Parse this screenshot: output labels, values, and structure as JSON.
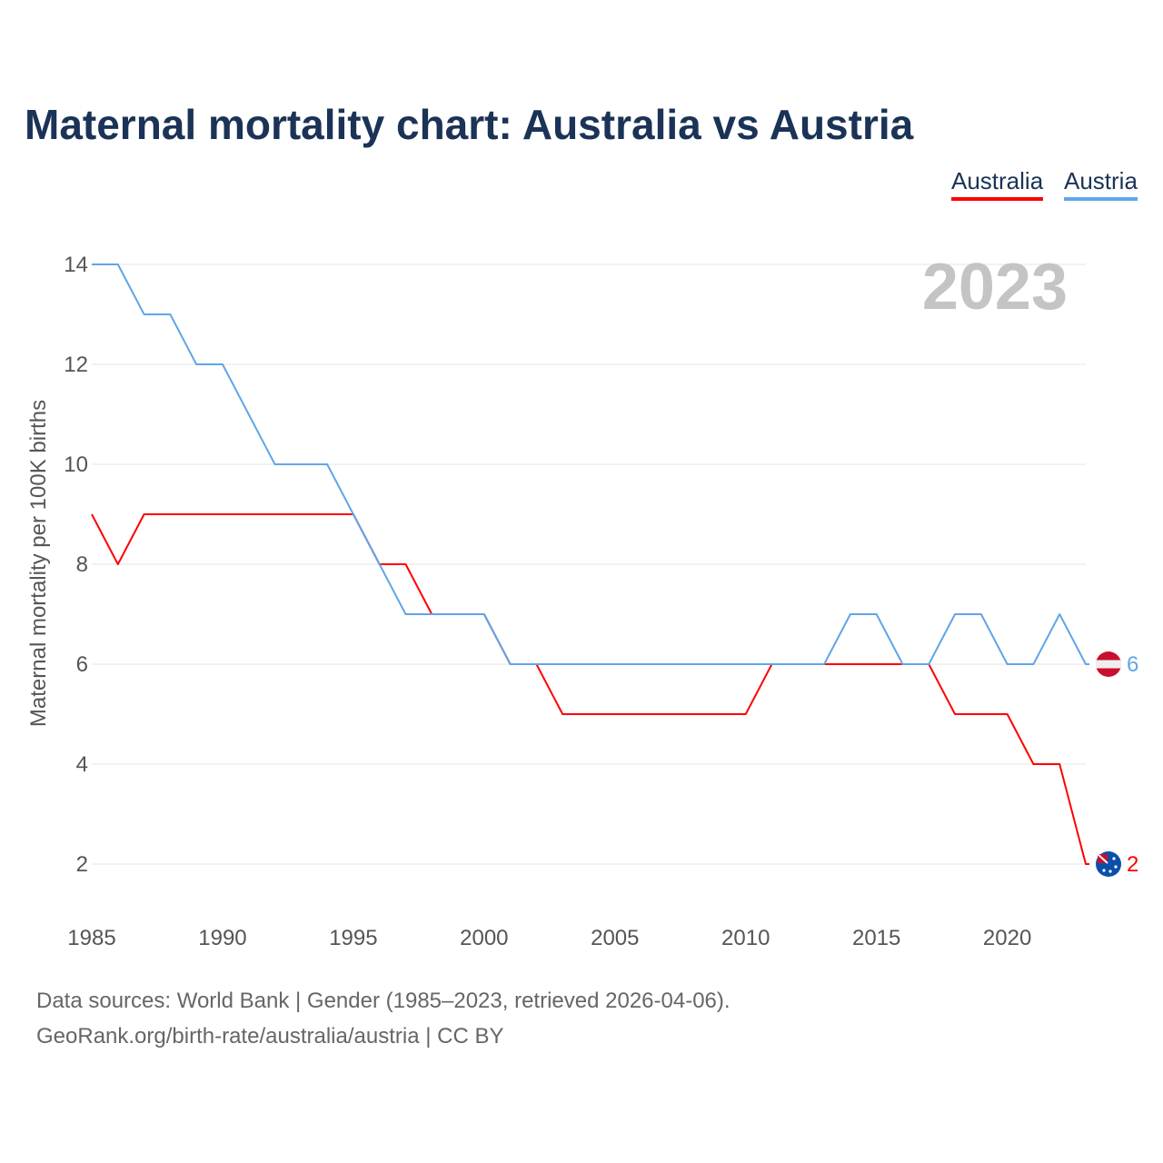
{
  "chart_data": {
    "type": "line",
    "title": "Maternal mortality chart: Australia vs Austria",
    "xlabel": "",
    "ylabel": "Maternal mortality per 100K births",
    "xlim": [
      1985,
      2023
    ],
    "ylim": [
      2,
      14
    ],
    "x_ticks": [
      "1985",
      "1990",
      "1995",
      "2000",
      "2005",
      "2010",
      "2015",
      "2020"
    ],
    "y_ticks": [
      "2",
      "4",
      "6",
      "8",
      "10",
      "12",
      "14"
    ],
    "grid": true,
    "legend_position": "top-right",
    "year_label": "2023",
    "x": [
      1985,
      1986,
      1987,
      1988,
      1989,
      1990,
      1991,
      1992,
      1993,
      1994,
      1995,
      1996,
      1997,
      1998,
      1999,
      2000,
      2001,
      2002,
      2003,
      2004,
      2005,
      2006,
      2007,
      2008,
      2009,
      2010,
      2011,
      2012,
      2013,
      2014,
      2015,
      2016,
      2017,
      2018,
      2019,
      2020,
      2021,
      2022,
      2023
    ],
    "series": [
      {
        "name": "Australia",
        "color": "#ff0000",
        "end_label": "2",
        "values": [
          9,
          8,
          9,
          9,
          9,
          9,
          9,
          9,
          9,
          9,
          9,
          8,
          8,
          7,
          7,
          7,
          6,
          6,
          5,
          5,
          5,
          5,
          5,
          5,
          5,
          5,
          6,
          6,
          6,
          6,
          6,
          6,
          6,
          5,
          5,
          5,
          4,
          4,
          2
        ]
      },
      {
        "name": "Austria",
        "color": "#60a5e8",
        "end_label": "6",
        "values": [
          14,
          14,
          13,
          13,
          12,
          12,
          11,
          10,
          10,
          10,
          9,
          8,
          7,
          7,
          7,
          7,
          6,
          6,
          6,
          6,
          6,
          6,
          6,
          6,
          6,
          6,
          6,
          6,
          6,
          7,
          7,
          6,
          6,
          7,
          7,
          6,
          6,
          7,
          6
        ]
      }
    ]
  },
  "footer": {
    "source": "Data sources: World Bank | Gender (1985–2023, retrieved 2026-04-06).",
    "link": "GeoRank.org/birth-rate/australia/austria | CC BY"
  }
}
